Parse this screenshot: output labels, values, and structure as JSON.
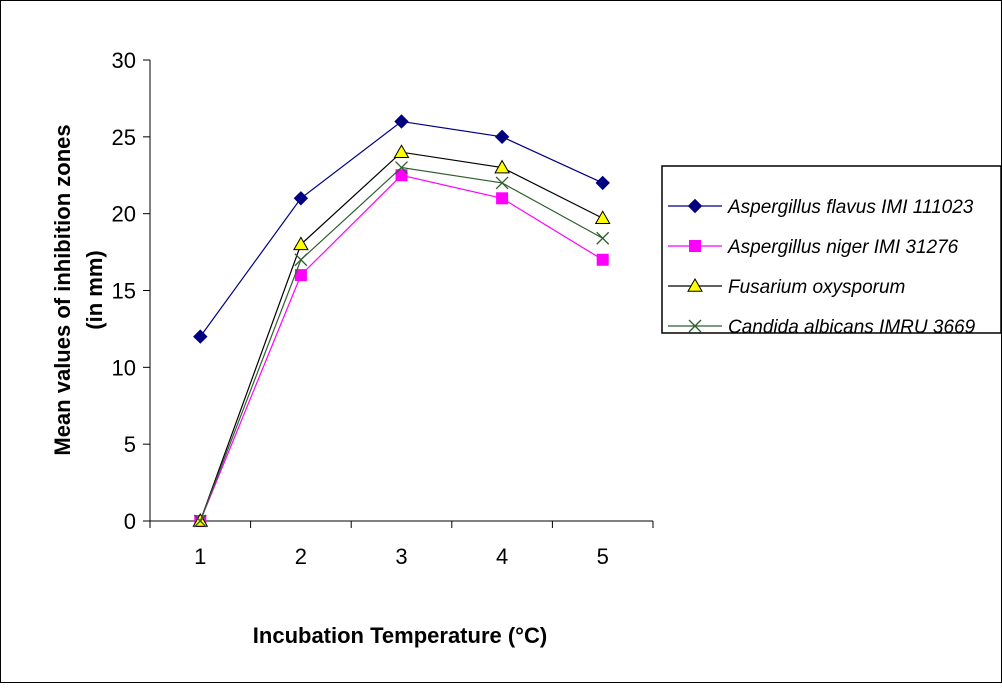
{
  "chart_data": {
    "type": "line",
    "title": "",
    "xlabel": "Incubation Temperature (°C)",
    "ylabel_lines": [
      "Mean values of inhibition zones",
      "(in mm)"
    ],
    "categories": [
      "1",
      "2",
      "3",
      "4",
      "5"
    ],
    "ylim": [
      0,
      30
    ],
    "yticks": [
      0,
      5,
      10,
      15,
      20,
      25,
      30
    ],
    "grid": false,
    "legend_position": "right",
    "series": [
      {
        "name": "Aspergillus flavus IMI 111023",
        "values": [
          12,
          21,
          26,
          25,
          22
        ],
        "color": "#000080",
        "marker": "diamond",
        "marker_fill": "#000080"
      },
      {
        "name": "Aspergillus niger IMI 31276",
        "values": [
          0,
          16,
          22.5,
          21,
          17
        ],
        "color": "#ff00ff",
        "marker": "square",
        "marker_fill": "#ff00ff"
      },
      {
        "name": "Fusarium oxysporum",
        "values": [
          0,
          18,
          24,
          23,
          19.7
        ],
        "color": "#000000",
        "marker": "triangle",
        "marker_fill": "#ffff00"
      },
      {
        "name": "Candida albicans IMRU 3669",
        "values": [
          0,
          17,
          23,
          22,
          18.4
        ],
        "color": "#2f5f2f",
        "marker": "x",
        "marker_fill": "none"
      }
    ]
  }
}
